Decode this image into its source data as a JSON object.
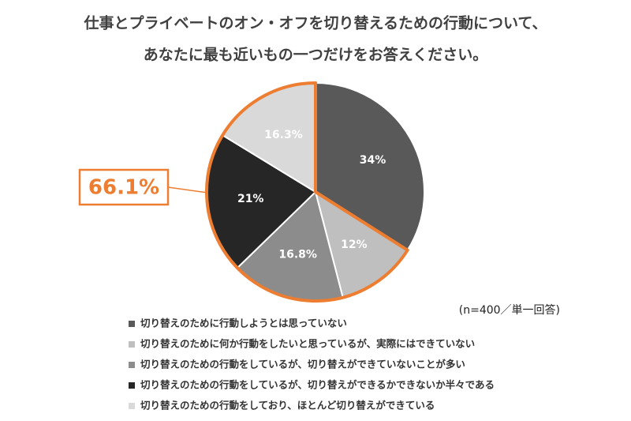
{
  "chart_data": {
    "type": "pie",
    "title_lines": [
      "仕事とプライベートのオン・オフを切り替えるための行動について、",
      "あなたに最も近いもの一つだけをお答えください。"
    ],
    "note": "(n=400／単一回答)",
    "categories": [
      "切り替えのために行動しようとは思っていない",
      "切り替えのために何か行動をしたいと思っているが、実際にはできていない",
      "切り替えのための行動をしているが、切り替えができていないことが多い",
      "切り替えのための行動をしているが、切り替えができるかできないか半々である",
      "切り替えのための行動をしており、ほとんど切り替えができている"
    ],
    "values": [
      34,
      12,
      16.8,
      21,
      16.3
    ],
    "value_labels": [
      "34%",
      "12%",
      "16.8%",
      "21%",
      "16.3%"
    ],
    "colors": [
      "#595959",
      "#bfbfbf",
      "#8c8c8c",
      "#262626",
      "#d9d9d9"
    ],
    "highlight": {
      "value": 66.1,
      "label": "66.1%",
      "color": "#ed7d31"
    }
  }
}
